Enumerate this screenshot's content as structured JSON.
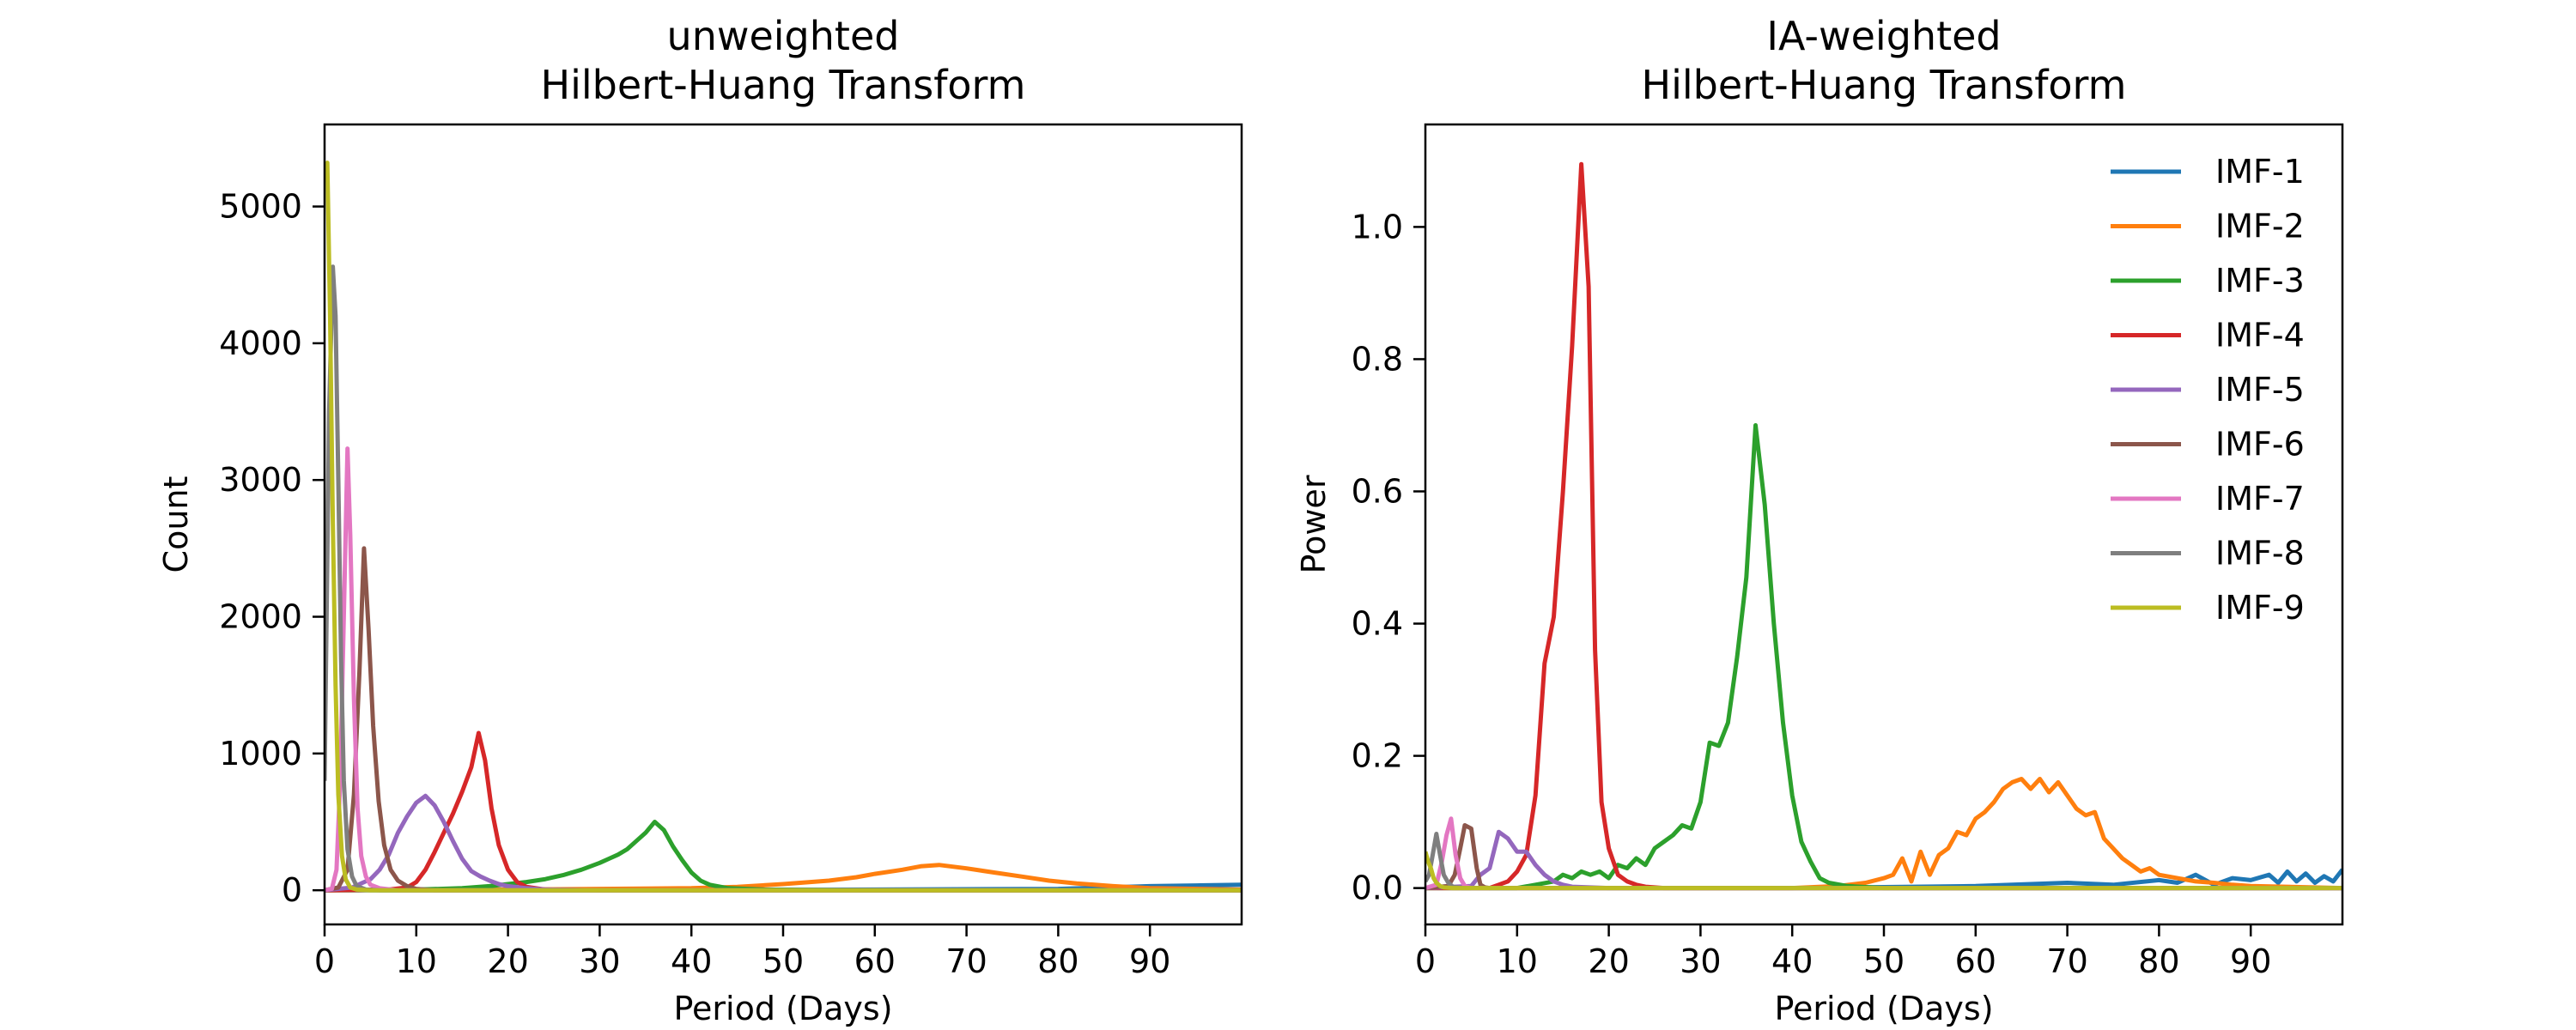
{
  "figure": {
    "background": "#ffffff"
  },
  "chart_data": [
    {
      "id": "left",
      "type": "line",
      "title": "unweighted\nHilbert-Huang Transform",
      "xlabel": "Period (Days)",
      "ylabel": "Count",
      "xlim": [
        0,
        100
      ],
      "ylim": [
        -250,
        5600
      ],
      "xticks": [
        0,
        10,
        20,
        30,
        40,
        50,
        60,
        70,
        80,
        90
      ],
      "yticks": [
        0,
        1000,
        2000,
        3000,
        4000,
        5000
      ],
      "grid": false,
      "legend": null,
      "series": [
        {
          "name": "IMF-1",
          "color": "#1f77b4",
          "x": [
            0,
            20,
            40,
            60,
            80,
            85,
            90,
            95,
            100
          ],
          "y": [
            0,
            0,
            0,
            5,
            10,
            20,
            30,
            35,
            40
          ]
        },
        {
          "name": "IMF-2",
          "color": "#ff7f0e",
          "x": [
            0,
            20,
            30,
            40,
            45,
            50,
            55,
            58,
            60,
            63,
            65,
            67,
            70,
            73,
            76,
            79,
            82,
            86,
            90,
            100
          ],
          "y": [
            0,
            5,
            10,
            15,
            25,
            45,
            70,
            95,
            120,
            150,
            175,
            185,
            160,
            130,
            100,
            70,
            50,
            30,
            15,
            5
          ]
        },
        {
          "name": "IMF-3",
          "color": "#2ca02c",
          "x": [
            0,
            10,
            15,
            18,
            20,
            22,
            24,
            26,
            28,
            30,
            31,
            32,
            33,
            34,
            35,
            36,
            37,
            38,
            39,
            40,
            41,
            42,
            44,
            48,
            60,
            100
          ],
          "y": [
            0,
            5,
            15,
            30,
            45,
            60,
            80,
            110,
            150,
            200,
            230,
            260,
            300,
            360,
            420,
            500,
            440,
            320,
            220,
            130,
            70,
            40,
            15,
            5,
            0,
            0
          ]
        },
        {
          "name": "IMF-4",
          "color": "#d62728",
          "x": [
            0,
            7,
            9,
            10,
            11,
            12,
            13,
            14,
            15,
            16,
            16.8,
            17.5,
            18.2,
            19,
            20,
            21,
            22,
            24,
            30,
            100
          ],
          "y": [
            0,
            5,
            20,
            60,
            150,
            280,
            420,
            560,
            720,
            900,
            1150,
            950,
            600,
            330,
            150,
            60,
            25,
            5,
            0,
            0
          ]
        },
        {
          "name": "IMF-5",
          "color": "#9467bd",
          "x": [
            0,
            3,
            5,
            6,
            7,
            8,
            9,
            10,
            11,
            12,
            13,
            14,
            15,
            16,
            17,
            18,
            19,
            20,
            22,
            24,
            30,
            100
          ],
          "y": [
            0,
            20,
            80,
            150,
            260,
            420,
            540,
            640,
            690,
            620,
            500,
            360,
            230,
            140,
            100,
            70,
            45,
            30,
            15,
            5,
            0,
            0
          ]
        },
        {
          "name": "IMF-6",
          "color": "#8c564b",
          "x": [
            0,
            1.5,
            2.5,
            3.2,
            3.8,
            4.3,
            4.8,
            5.3,
            5.9,
            6.5,
            7.2,
            8,
            9,
            10,
            12,
            100
          ],
          "y": [
            0,
            20,
            150,
            700,
            1600,
            2500,
            1900,
            1200,
            650,
            330,
            150,
            70,
            30,
            10,
            0,
            0
          ]
        },
        {
          "name": "IMF-7",
          "color": "#e377c2",
          "x": [
            0,
            0.8,
            1.3,
            1.7,
            2.1,
            2.5,
            2.8,
            3.2,
            3.6,
            4.0,
            4.5,
            5,
            6,
            8,
            100
          ],
          "y": [
            0,
            10,
            150,
            800,
            2000,
            3230,
            2600,
            1400,
            600,
            250,
            100,
            40,
            15,
            0,
            0
          ]
        },
        {
          "name": "IMF-8",
          "color": "#7f7f7f",
          "x": [
            0,
            0.5,
            0.9,
            1.2,
            1.5,
            1.8,
            2.1,
            2.5,
            3.0,
            3.5,
            4.5,
            6,
            100
          ],
          "y": [
            800,
            3500,
            4560,
            4200,
            3000,
            1700,
            800,
            300,
            100,
            30,
            5,
            0,
            0
          ]
        },
        {
          "name": "IMF-9",
          "color": "#bcbd22",
          "x": [
            0,
            0.3,
            0.6,
            0.9,
            1.2,
            1.5,
            1.9,
            2.3,
            2.8,
            3.5,
            5,
            100
          ],
          "y": [
            5300,
            5320,
            4200,
            2700,
            1500,
            700,
            250,
            80,
            20,
            5,
            0,
            0
          ]
        }
      ]
    },
    {
      "id": "right",
      "type": "line",
      "title": "IA-weighted\nHilbert-Huang Transform",
      "xlabel": "Period (Days)",
      "ylabel": "Power",
      "xlim": [
        0,
        100
      ],
      "ylim": [
        -0.055,
        1.155
      ],
      "xticks": [
        0,
        10,
        20,
        30,
        40,
        50,
        60,
        70,
        80,
        90
      ],
      "yticks": [
        0.0,
        0.2,
        0.4,
        0.6,
        0.8,
        1.0
      ],
      "ytick_labels": [
        "0.0",
        "0.2",
        "0.4",
        "0.6",
        "0.8",
        "1.0"
      ],
      "grid": false,
      "legend": "upper-right",
      "series": [
        {
          "name": "IMF-1",
          "color": "#1f77b4",
          "x": [
            0,
            40,
            60,
            70,
            75,
            80,
            82,
            84,
            86,
            88,
            90,
            92,
            93,
            94,
            95,
            96,
            97,
            98,
            99,
            100
          ],
          "y": [
            0,
            0,
            0.003,
            0.008,
            0.005,
            0.012,
            0.008,
            0.02,
            0.005,
            0.015,
            0.012,
            0.02,
            0.008,
            0.025,
            0.01,
            0.022,
            0.008,
            0.018,
            0.01,
            0.028
          ]
        },
        {
          "name": "IMF-2",
          "color": "#ff7f0e",
          "x": [
            0,
            40,
            45,
            48,
            50,
            51,
            52,
            53,
            54,
            55,
            56,
            57,
            58,
            59,
            60,
            61,
            62,
            63,
            64,
            65,
            66,
            67,
            68,
            69,
            70,
            71,
            72,
            73,
            74,
            75,
            76,
            77,
            78,
            79,
            80,
            82,
            84,
            86,
            88,
            90,
            100
          ],
          "y": [
            0,
            0,
            0.003,
            0.008,
            0.015,
            0.02,
            0.045,
            0.01,
            0.055,
            0.02,
            0.05,
            0.06,
            0.085,
            0.08,
            0.105,
            0.115,
            0.13,
            0.15,
            0.16,
            0.165,
            0.15,
            0.165,
            0.145,
            0.16,
            0.14,
            0.12,
            0.11,
            0.115,
            0.075,
            0.06,
            0.045,
            0.035,
            0.025,
            0.03,
            0.02,
            0.015,
            0.01,
            0.008,
            0.005,
            0.003,
            0
          ]
        },
        {
          "name": "IMF-3",
          "color": "#2ca02c",
          "x": [
            0,
            10,
            12,
            14,
            15,
            16,
            17,
            18,
            19,
            20,
            21,
            22,
            23,
            24,
            25,
            26,
            27,
            28,
            29,
            30,
            31,
            32,
            33,
            34,
            35,
            36,
            37,
            38,
            39,
            40,
            41,
            42,
            43,
            44,
            46,
            50,
            100
          ],
          "y": [
            0,
            0,
            0.005,
            0.01,
            0.02,
            0.015,
            0.025,
            0.02,
            0.025,
            0.015,
            0.035,
            0.03,
            0.045,
            0.035,
            0.06,
            0.07,
            0.08,
            0.095,
            0.09,
            0.13,
            0.22,
            0.215,
            0.25,
            0.35,
            0.47,
            0.7,
            0.58,
            0.4,
            0.25,
            0.14,
            0.07,
            0.04,
            0.015,
            0.008,
            0.003,
            0,
            0
          ]
        },
        {
          "name": "IMF-4",
          "color": "#d62728",
          "x": [
            0,
            7,
            8,
            9,
            10,
            11,
            12,
            13,
            14,
            15,
            16,
            17,
            17.8,
            18.5,
            19.2,
            20,
            21,
            22,
            23,
            24,
            26,
            100
          ],
          "y": [
            0,
            0,
            0.005,
            0.01,
            0.025,
            0.05,
            0.14,
            0.34,
            0.41,
            0.6,
            0.82,
            1.095,
            0.91,
            0.36,
            0.13,
            0.06,
            0.02,
            0.01,
            0.005,
            0.002,
            0,
            0
          ]
        },
        {
          "name": "IMF-5",
          "color": "#9467bd",
          "x": [
            0,
            5,
            6,
            7,
            8,
            9,
            10,
            11,
            12,
            13,
            14,
            15,
            16,
            18,
            20,
            100
          ],
          "y": [
            0,
            0.003,
            0.02,
            0.03,
            0.085,
            0.075,
            0.055,
            0.055,
            0.035,
            0.02,
            0.01,
            0.005,
            0.002,
            0.001,
            0,
            0
          ]
        },
        {
          "name": "IMF-6",
          "color": "#8c564b",
          "x": [
            0,
            2.5,
            3.2,
            3.8,
            4.3,
            5.0,
            5.6,
            6.0,
            6.5,
            7,
            100
          ],
          "y": [
            0,
            0.003,
            0.02,
            0.06,
            0.095,
            0.09,
            0.03,
            0.005,
            0.001,
            0,
            0
          ]
        },
        {
          "name": "IMF-7",
          "color": "#e377c2",
          "x": [
            0,
            1.2,
            1.8,
            2.3,
            2.8,
            3.3,
            3.8,
            4.3,
            5,
            100
          ],
          "y": [
            0,
            0.005,
            0.04,
            0.08,
            0.105,
            0.05,
            0.015,
            0.003,
            0,
            0
          ]
        },
        {
          "name": "IMF-8",
          "color": "#7f7f7f",
          "x": [
            0,
            0.4,
            0.8,
            1.2,
            1.6,
            2.0,
            2.5,
            3.0,
            4,
            100
          ],
          "y": [
            0.01,
            0.02,
            0.05,
            0.082,
            0.05,
            0.02,
            0.008,
            0.002,
            0,
            0
          ]
        },
        {
          "name": "IMF-9",
          "color": "#bcbd22",
          "x": [
            0,
            0.3,
            0.6,
            0.9,
            1.2,
            1.6,
            2.0,
            3,
            100
          ],
          "y": [
            0.055,
            0.04,
            0.03,
            0.015,
            0.008,
            0.003,
            0.001,
            0,
            0
          ]
        }
      ]
    }
  ]
}
